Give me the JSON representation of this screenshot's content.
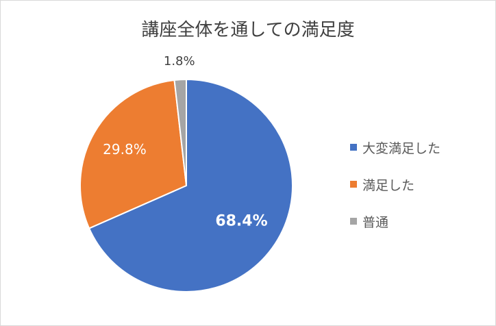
{
  "chart_data": {
    "type": "pie",
    "title": "講座全体を通しての満足度",
    "categories": [
      "大変満足した",
      "満足した",
      "普通"
    ],
    "values": [
      68.4,
      29.8,
      1.8
    ],
    "value_labels": [
      "68.4%",
      "29.8%",
      "1.8%"
    ],
    "colors": [
      "#4472C4",
      "#ED7D31",
      "#A5A5A5"
    ],
    "label_colors": [
      "#ffffff",
      "#ffffff",
      "#404040"
    ],
    "legend_position": "right",
    "start_angle": "top, clockwise"
  }
}
